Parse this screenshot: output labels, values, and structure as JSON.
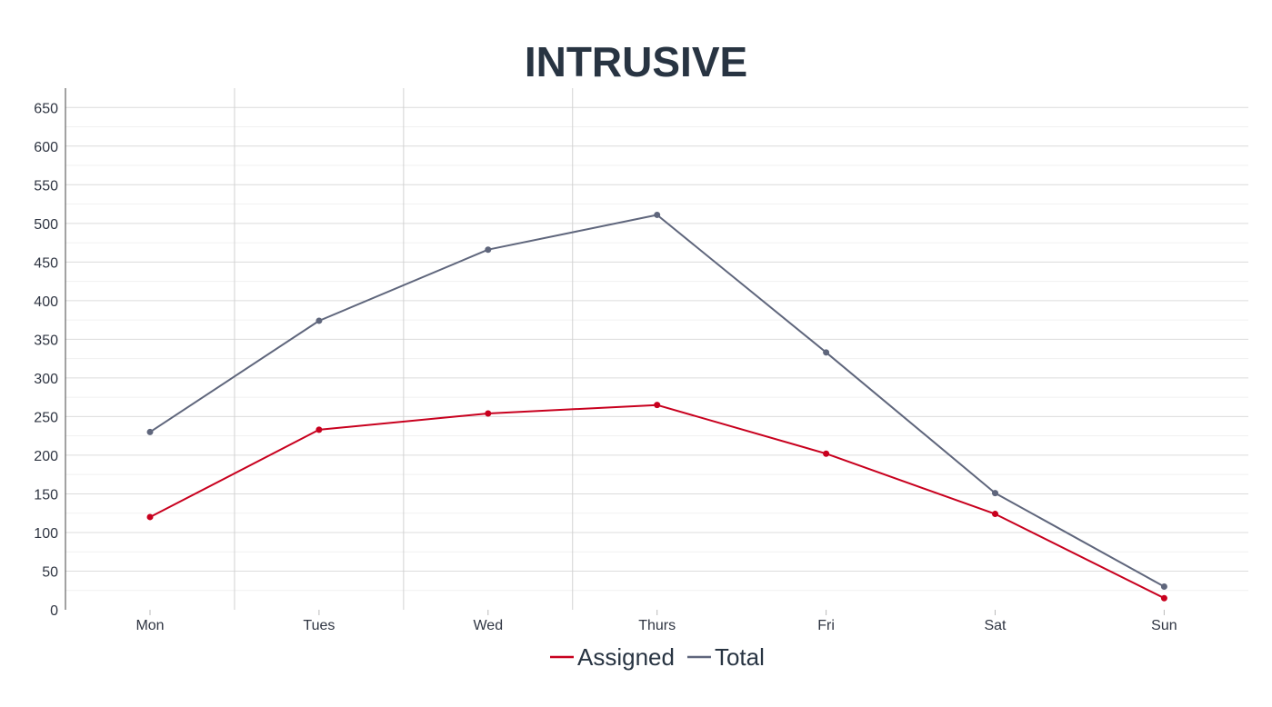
{
  "chart_data": {
    "type": "line",
    "title": "INTRUSIVE",
    "xlabel": "",
    "ylabel": "",
    "categories": [
      "Mon",
      "Tues",
      "Wed",
      "Thurs",
      "Fri",
      "Sat",
      "Sun"
    ],
    "ylim": [
      0,
      675
    ],
    "yticks": [
      0,
      50,
      100,
      150,
      200,
      250,
      300,
      350,
      400,
      450,
      500,
      550,
      600,
      650
    ],
    "grid": true,
    "legend_position": "bottom",
    "series": [
      {
        "name": "Assigned",
        "color": "#c8001e",
        "values": [
          120,
          233,
          254,
          265,
          202,
          124,
          15
        ]
      },
      {
        "name": "Total",
        "color": "#5f667c",
        "values": [
          230,
          374,
          466,
          511,
          333,
          151,
          30
        ]
      }
    ]
  }
}
